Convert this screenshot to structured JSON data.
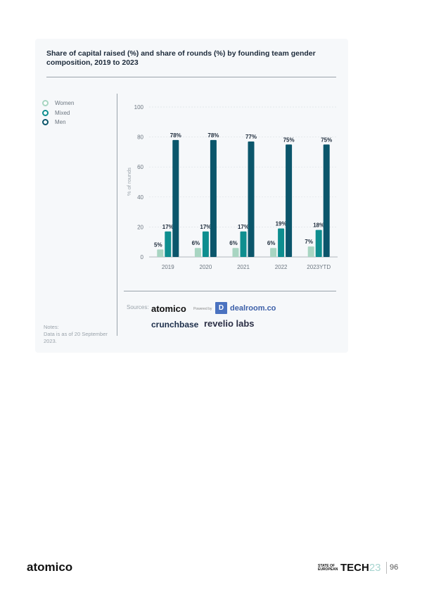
{
  "chart_data": {
    "type": "bar",
    "title": "Share of capital raised (%) and share of rounds (%) by founding team gender composition, 2019 to 2023",
    "ylabel": "% of rounds",
    "xlabel": "",
    "ylim": [
      0,
      100
    ],
    "yticks": [
      0,
      20,
      40,
      60,
      80,
      100
    ],
    "grid": true,
    "legend_position": "left",
    "categories": [
      "2019",
      "2020",
      "2021",
      "2022",
      "2023YTD"
    ],
    "series": [
      {
        "name": "Women",
        "color": "#a8d5c2",
        "values": [
          5,
          6,
          6,
          6,
          7
        ],
        "labels": [
          "5%",
          "6%",
          "6%",
          "6%",
          "7%"
        ]
      },
      {
        "name": "Mixed",
        "color": "#0e8e8f",
        "values": [
          17,
          17,
          17,
          19,
          18
        ],
        "labels": [
          "17%",
          "17%",
          "17%",
          "19%",
          "18%"
        ]
      },
      {
        "name": "Men",
        "color": "#0b566b",
        "values": [
          78,
          78,
          77,
          75,
          75
        ],
        "labels": [
          "78%",
          "78%",
          "77%",
          "75%",
          "75%"
        ]
      }
    ]
  },
  "sources": {
    "label": "Sources:",
    "atomico": "atomico",
    "powered_by": "Powered by",
    "dealroom": "dealroom.co",
    "crunchbase": "crunchbase",
    "revelio": "revelio labs"
  },
  "notes": {
    "label": "Notes:",
    "text": "Data is as of 20 September 2023."
  },
  "footer": {
    "brand": "atomico",
    "report_small": "STATE OF EUROPEAN",
    "report_big": "TECH",
    "report_year": "23",
    "page_number": "96"
  }
}
